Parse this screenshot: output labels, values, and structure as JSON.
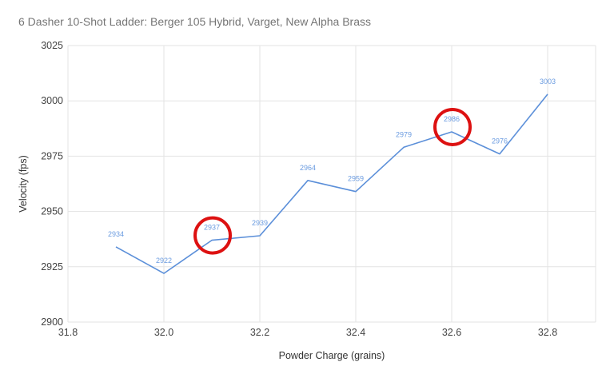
{
  "chart_data": {
    "type": "line",
    "title": "6 Dasher 10-Shot Ladder: Berger 105 Hybrid, Varget, New Alpha Brass",
    "xlabel": "Powder Charge (grains)",
    "ylabel": "Velocity (fps)",
    "xlim": [
      31.8,
      32.9
    ],
    "ylim": [
      2900,
      3025
    ],
    "x_ticks": [
      "31.8",
      "32.0",
      "32.2",
      "32.4",
      "32.6",
      "32.8"
    ],
    "y_ticks": [
      "2900",
      "2925",
      "2950",
      "2975",
      "3000",
      "3025"
    ],
    "grid": true,
    "legend": "none",
    "series": [
      {
        "name": "Velocity",
        "color": "#5b8fd9",
        "x": [
          31.9,
          32.0,
          32.1,
          32.2,
          32.3,
          32.4,
          32.5,
          32.6,
          32.7,
          32.8
        ],
        "values": [
          2934,
          2922,
          2937,
          2939,
          2964,
          2959,
          2979,
          2986,
          2976,
          3003
        ],
        "labels": [
          "2934",
          "2922",
          "2937",
          "2939",
          "2964",
          "2959",
          "2979",
          "2986",
          "2976",
          "3003"
        ]
      }
    ],
    "annotations": [
      {
        "type": "circle",
        "x": 32.1,
        "y": 2937,
        "color": "#dd1111",
        "note": "highlighted node"
      },
      {
        "type": "circle",
        "x": 32.6,
        "y": 2986,
        "color": "#dd1111",
        "note": "highlighted node"
      }
    ]
  }
}
